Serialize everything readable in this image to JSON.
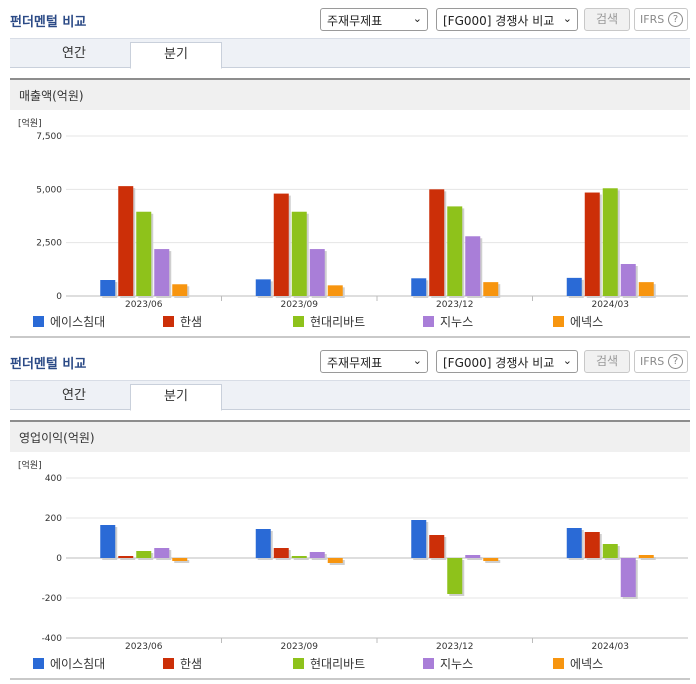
{
  "sections": [
    {
      "title": "펀더멘털 비교",
      "select1": "주재무제표",
      "select2": "[FG000] 경쟁사 비교",
      "search_label": "검색",
      "ifrs_label": "IFRS",
      "ifrs_help": "?",
      "tabs": [
        "연간",
        "분기"
      ],
      "active_tab": 1,
      "chart_title": "매출액(억원)"
    },
    {
      "title": "펀더멘털 비교",
      "select1": "주재무제표",
      "select2": "[FG000] 경쟁사 비교",
      "search_label": "검색",
      "ifrs_label": "IFRS",
      "ifrs_help": "?",
      "tabs": [
        "연간",
        "분기"
      ],
      "active_tab": 1,
      "chart_title": "영업이익(억원)"
    }
  ],
  "chart_data": [
    {
      "type": "bar",
      "title": "매출액(억원)",
      "yunit": "[억원]",
      "categories": [
        "2023/06",
        "2023/09",
        "2023/12",
        "2024/03"
      ],
      "ylim": [
        0,
        7500
      ],
      "yticks": [
        0,
        2500,
        5000,
        7500
      ],
      "ytick_labels": [
        "0",
        "2,500",
        "5,000",
        "7,500"
      ],
      "grid": true,
      "legend": "bottom",
      "series": [
        {
          "name": "에이스침대",
          "color": "#2a6ad6",
          "values": [
            750,
            780,
            830,
            850
          ]
        },
        {
          "name": "한샘",
          "color": "#cc2f08",
          "values": [
            5150,
            4800,
            5000,
            4850
          ]
        },
        {
          "name": "현대리바트",
          "color": "#8ec21b",
          "values": [
            3950,
            3950,
            4200,
            5050
          ]
        },
        {
          "name": "지누스",
          "color": "#a97ed8",
          "values": [
            2200,
            2200,
            2800,
            1500
          ]
        },
        {
          "name": "에넥스",
          "color": "#f7950f",
          "values": [
            550,
            500,
            650,
            650
          ]
        }
      ]
    },
    {
      "type": "bar",
      "title": "영업이익(억원)",
      "yunit": "[억원]",
      "categories": [
        "2023/06",
        "2023/09",
        "2023/12",
        "2024/03"
      ],
      "ylim": [
        -400,
        400
      ],
      "yticks": [
        -400,
        -200,
        0,
        200,
        400
      ],
      "ytick_labels": [
        "-400",
        "-200",
        "0",
        "200",
        "400"
      ],
      "grid": true,
      "legend": "bottom",
      "series": [
        {
          "name": "에이스침대",
          "color": "#2a6ad6",
          "values": [
            165,
            145,
            190,
            150
          ]
        },
        {
          "name": "한샘",
          "color": "#cc2f08",
          "values": [
            10,
            50,
            115,
            130
          ]
        },
        {
          "name": "현대리바트",
          "color": "#8ec21b",
          "values": [
            35,
            10,
            -180,
            70
          ]
        },
        {
          "name": "지누스",
          "color": "#a97ed8",
          "values": [
            50,
            30,
            15,
            -195
          ]
        },
        {
          "name": "에넥스",
          "color": "#f7950f",
          "values": [
            -15,
            -25,
            -15,
            15
          ]
        }
      ]
    }
  ]
}
